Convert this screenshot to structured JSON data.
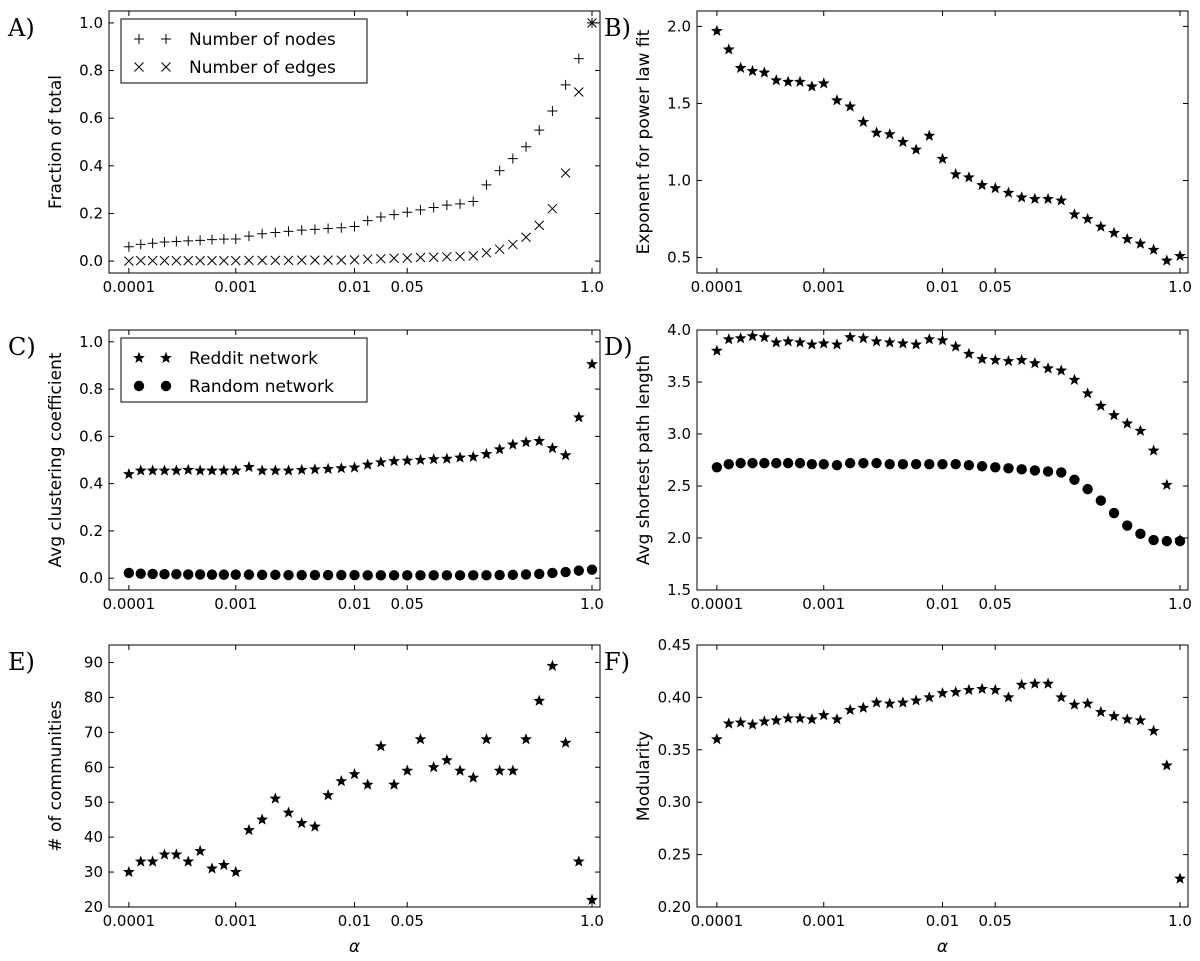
{
  "chart_data": [
    {
      "panel": "A)",
      "type": "scatter",
      "xlabel": "",
      "ylabel": "Fraction of total",
      "xlim": [
        0.0001,
        1.0
      ],
      "ylim": [
        -0.05,
        1.05
      ],
      "xticks": [
        "0.0001",
        "0.001",
        "0.01",
        "0.05",
        "1.0"
      ],
      "yticks": [
        "0.0",
        "0.2",
        "0.4",
        "0.6",
        "0.8",
        "1.0"
      ],
      "legend_position": "top-left",
      "series": [
        {
          "name": "Number of nodes",
          "marker": "plus",
          "x": [
            0.0001,
            0.0002,
            0.0003,
            0.0004,
            0.0005,
            0.0006,
            0.0007,
            0.0008,
            0.0009,
            0.001,
            0.002,
            0.003,
            0.004,
            0.005,
            0.006,
            0.007,
            0.008,
            0.009,
            0.01,
            0.02,
            0.03,
            0.04,
            0.05,
            0.06,
            0.07,
            0.08,
            0.09,
            0.1,
            0.2,
            0.3,
            0.4,
            0.5,
            0.6,
            0.7,
            0.8,
            0.9,
            1.0
          ],
          "values": [
            0.06,
            0.07,
            0.075,
            0.08,
            0.082,
            0.085,
            0.087,
            0.09,
            0.092,
            0.093,
            0.105,
            0.115,
            0.12,
            0.125,
            0.13,
            0.133,
            0.137,
            0.14,
            0.145,
            0.17,
            0.185,
            0.195,
            0.205,
            0.215,
            0.225,
            0.235,
            0.24,
            0.25,
            0.32,
            0.38,
            0.43,
            0.48,
            0.55,
            0.63,
            0.74,
            0.85,
            1.0
          ]
        },
        {
          "name": "Number of edges",
          "marker": "x",
          "x": [
            0.0001,
            0.0002,
            0.0003,
            0.0004,
            0.0005,
            0.0006,
            0.0007,
            0.0008,
            0.0009,
            0.001,
            0.002,
            0.003,
            0.004,
            0.005,
            0.006,
            0.007,
            0.008,
            0.009,
            0.01,
            0.02,
            0.03,
            0.04,
            0.05,
            0.06,
            0.07,
            0.08,
            0.09,
            0.1,
            0.2,
            0.3,
            0.4,
            0.5,
            0.6,
            0.7,
            0.8,
            0.9,
            1.0
          ],
          "values": [
            0.0,
            0.002,
            0.002,
            0.002,
            0.002,
            0.002,
            0.002,
            0.002,
            0.002,
            0.002,
            0.003,
            0.003,
            0.003,
            0.003,
            0.004,
            0.004,
            0.004,
            0.004,
            0.005,
            0.008,
            0.01,
            0.012,
            0.013,
            0.015,
            0.016,
            0.018,
            0.02,
            0.022,
            0.035,
            0.05,
            0.07,
            0.1,
            0.15,
            0.22,
            0.37,
            0.71,
            1.0
          ]
        }
      ]
    },
    {
      "panel": "B)",
      "type": "scatter",
      "xlabel": "",
      "ylabel": "Exponent for power law fit",
      "xlim": [
        0.0001,
        1.0
      ],
      "ylim": [
        0.4,
        2.1
      ],
      "xticks": [
        "0.0001",
        "0.001",
        "0.01",
        "0.05",
        "1.0"
      ],
      "yticks": [
        "0.5",
        "1.0",
        "1.5",
        "2.0"
      ],
      "series": [
        {
          "name": "",
          "marker": "star",
          "x": [
            0.0001,
            0.0002,
            0.0003,
            0.0004,
            0.0005,
            0.0006,
            0.0007,
            0.0008,
            0.0009,
            0.001,
            0.002,
            0.003,
            0.004,
            0.005,
            0.006,
            0.007,
            0.008,
            0.009,
            0.01,
            0.02,
            0.03,
            0.04,
            0.05,
            0.06,
            0.07,
            0.08,
            0.09,
            0.1,
            0.2,
            0.3,
            0.4,
            0.5,
            0.6,
            0.7,
            0.8,
            0.9,
            1.0
          ],
          "values": [
            1.97,
            1.85,
            1.73,
            1.71,
            1.7,
            1.65,
            1.64,
            1.64,
            1.61,
            1.63,
            1.52,
            1.48,
            1.38,
            1.31,
            1.3,
            1.25,
            1.2,
            1.29,
            1.14,
            1.04,
            1.02,
            0.97,
            0.95,
            0.92,
            0.89,
            0.88,
            0.88,
            0.87,
            0.78,
            0.75,
            0.7,
            0.66,
            0.62,
            0.59,
            0.55,
            0.48,
            0.51
          ]
        }
      ]
    },
    {
      "panel": "C)",
      "type": "scatter",
      "xlabel": "",
      "ylabel": "Avg clustering coefficient",
      "xlim": [
        0.0001,
        1.0
      ],
      "ylim": [
        -0.05,
        1.05
      ],
      "xticks": [
        "0.0001",
        "0.001",
        "0.01",
        "0.05",
        "1.0"
      ],
      "yticks": [
        "0.0",
        "0.2",
        "0.4",
        "0.6",
        "0.8",
        "1.0"
      ],
      "legend_position": "top-left",
      "series": [
        {
          "name": "Reddit network",
          "marker": "star",
          "x": [
            0.0001,
            0.0002,
            0.0003,
            0.0004,
            0.0005,
            0.0006,
            0.0007,
            0.0008,
            0.0009,
            0.001,
            0.002,
            0.003,
            0.004,
            0.005,
            0.006,
            0.007,
            0.008,
            0.009,
            0.01,
            0.02,
            0.03,
            0.04,
            0.05,
            0.06,
            0.07,
            0.08,
            0.09,
            0.1,
            0.2,
            0.3,
            0.4,
            0.5,
            0.6,
            0.7,
            0.8,
            0.9,
            1.0
          ],
          "values": [
            0.44,
            0.455,
            0.455,
            0.455,
            0.455,
            0.458,
            0.455,
            0.455,
            0.455,
            0.455,
            0.47,
            0.455,
            0.455,
            0.455,
            0.458,
            0.46,
            0.462,
            0.465,
            0.468,
            0.48,
            0.49,
            0.495,
            0.497,
            0.5,
            0.503,
            0.505,
            0.51,
            0.513,
            0.525,
            0.545,
            0.565,
            0.575,
            0.58,
            0.55,
            0.52,
            0.68,
            0.905
          ]
        },
        {
          "name": "Random network",
          "marker": "circle",
          "x": [
            0.0001,
            0.0002,
            0.0003,
            0.0004,
            0.0005,
            0.0006,
            0.0007,
            0.0008,
            0.0009,
            0.001,
            0.002,
            0.003,
            0.004,
            0.005,
            0.006,
            0.007,
            0.008,
            0.009,
            0.01,
            0.02,
            0.03,
            0.04,
            0.05,
            0.06,
            0.07,
            0.08,
            0.09,
            0.1,
            0.2,
            0.3,
            0.4,
            0.5,
            0.6,
            0.7,
            0.8,
            0.9,
            1.0
          ],
          "values": [
            0.022,
            0.019,
            0.018,
            0.017,
            0.017,
            0.016,
            0.016,
            0.015,
            0.015,
            0.015,
            0.015,
            0.014,
            0.014,
            0.013,
            0.013,
            0.013,
            0.013,
            0.013,
            0.013,
            0.012,
            0.012,
            0.012,
            0.012,
            0.012,
            0.012,
            0.012,
            0.012,
            0.012,
            0.012,
            0.013,
            0.014,
            0.016,
            0.018,
            0.022,
            0.026,
            0.032,
            0.036
          ]
        }
      ]
    },
    {
      "panel": "D)",
      "type": "scatter",
      "xlabel": "",
      "ylabel": "Avg shortest path length",
      "xlim": [
        0.0001,
        1.0
      ],
      "ylim": [
        1.5,
        4.0
      ],
      "xticks": [
        "0.0001",
        "0.001",
        "0.01",
        "0.05",
        "1.0"
      ],
      "yticks": [
        "1.5",
        "2.0",
        "2.5",
        "3.0",
        "3.5",
        "4.0"
      ],
      "series": [
        {
          "name": "Reddit network",
          "marker": "star",
          "x": [
            0.0001,
            0.0002,
            0.0003,
            0.0004,
            0.0005,
            0.0006,
            0.0007,
            0.0008,
            0.0009,
            0.001,
            0.002,
            0.003,
            0.004,
            0.005,
            0.006,
            0.007,
            0.008,
            0.009,
            0.01,
            0.02,
            0.03,
            0.04,
            0.05,
            0.06,
            0.07,
            0.08,
            0.09,
            0.1,
            0.2,
            0.3,
            0.4,
            0.5,
            0.6,
            0.7,
            0.8,
            0.9,
            1.0
          ],
          "values": [
            3.8,
            3.91,
            3.92,
            3.94,
            3.93,
            3.88,
            3.89,
            3.88,
            3.86,
            3.87,
            3.86,
            3.93,
            3.92,
            3.89,
            3.88,
            3.87,
            3.86,
            3.91,
            3.9,
            3.84,
            3.77,
            3.72,
            3.71,
            3.7,
            3.71,
            3.68,
            3.63,
            3.61,
            3.52,
            3.39,
            3.27,
            3.18,
            3.1,
            3.03,
            2.84,
            2.51,
            1.98
          ]
        },
        {
          "name": "Random network",
          "marker": "circle",
          "x": [
            0.0001,
            0.0002,
            0.0003,
            0.0004,
            0.0005,
            0.0006,
            0.0007,
            0.0008,
            0.0009,
            0.001,
            0.002,
            0.003,
            0.004,
            0.005,
            0.006,
            0.007,
            0.008,
            0.009,
            0.01,
            0.02,
            0.03,
            0.04,
            0.05,
            0.06,
            0.07,
            0.08,
            0.09,
            0.1,
            0.2,
            0.3,
            0.4,
            0.5,
            0.6,
            0.7,
            0.8,
            0.9,
            1.0
          ],
          "values": [
            2.68,
            2.71,
            2.72,
            2.72,
            2.72,
            2.72,
            2.72,
            2.72,
            2.71,
            2.71,
            2.7,
            2.72,
            2.72,
            2.72,
            2.71,
            2.71,
            2.71,
            2.71,
            2.71,
            2.71,
            2.7,
            2.69,
            2.68,
            2.67,
            2.66,
            2.65,
            2.64,
            2.63,
            2.56,
            2.47,
            2.36,
            2.24,
            2.12,
            2.04,
            1.98,
            1.97,
            1.97
          ]
        }
      ]
    },
    {
      "panel": "E)",
      "type": "scatter",
      "xlabel": "α",
      "ylabel": "# of communities",
      "xlim": [
        0.0001,
        1.0
      ],
      "ylim": [
        20,
        95
      ],
      "xticks": [
        "0.0001",
        "0.001",
        "0.01",
        "0.05",
        "1.0"
      ],
      "yticks": [
        "20",
        "30",
        "40",
        "50",
        "60",
        "70",
        "80",
        "90"
      ],
      "series": [
        {
          "name": "",
          "marker": "star",
          "x": [
            0.0001,
            0.0002,
            0.0003,
            0.0004,
            0.0005,
            0.0006,
            0.0007,
            0.0008,
            0.0009,
            0.001,
            0.002,
            0.003,
            0.004,
            0.005,
            0.006,
            0.007,
            0.008,
            0.009,
            0.01,
            0.02,
            0.03,
            0.04,
            0.05,
            0.06,
            0.07,
            0.08,
            0.09,
            0.1,
            0.2,
            0.3,
            0.4,
            0.5,
            0.6,
            0.7,
            0.8,
            0.9,
            1.0
          ],
          "values": [
            30,
            33,
            33,
            35,
            35,
            33,
            36,
            31,
            32,
            30,
            42,
            45,
            51,
            47,
            44,
            43,
            52,
            56,
            58,
            55,
            66,
            55,
            59,
            68,
            60,
            62,
            59,
            57,
            68,
            59,
            59,
            68,
            79,
            89,
            67,
            33,
            22
          ]
        }
      ]
    },
    {
      "panel": "F)",
      "type": "scatter",
      "xlabel": "α",
      "ylabel": "Modularity",
      "xlim": [
        0.0001,
        1.0
      ],
      "ylim": [
        0.2,
        0.45
      ],
      "xticks": [
        "0.0001",
        "0.001",
        "0.01",
        "0.05",
        "1.0"
      ],
      "yticks": [
        "0.20",
        "0.25",
        "0.30",
        "0.35",
        "0.40",
        "0.45"
      ],
      "series": [
        {
          "name": "",
          "marker": "star",
          "x": [
            0.0001,
            0.0002,
            0.0003,
            0.0004,
            0.0005,
            0.0006,
            0.0007,
            0.0008,
            0.0009,
            0.001,
            0.002,
            0.003,
            0.004,
            0.005,
            0.006,
            0.007,
            0.008,
            0.009,
            0.01,
            0.02,
            0.03,
            0.04,
            0.05,
            0.06,
            0.07,
            0.08,
            0.09,
            0.1,
            0.2,
            0.3,
            0.4,
            0.5,
            0.6,
            0.7,
            0.8,
            0.9,
            1.0
          ],
          "values": [
            0.36,
            0.375,
            0.376,
            0.374,
            0.377,
            0.378,
            0.38,
            0.38,
            0.379,
            0.383,
            0.379,
            0.388,
            0.39,
            0.395,
            0.394,
            0.395,
            0.397,
            0.4,
            0.404,
            0.405,
            0.407,
            0.408,
            0.407,
            0.4,
            0.412,
            0.413,
            0.413,
            0.4,
            0.393,
            0.394,
            0.386,
            0.382,
            0.379,
            0.378,
            0.368,
            0.335,
            0.227
          ]
        }
      ]
    }
  ]
}
